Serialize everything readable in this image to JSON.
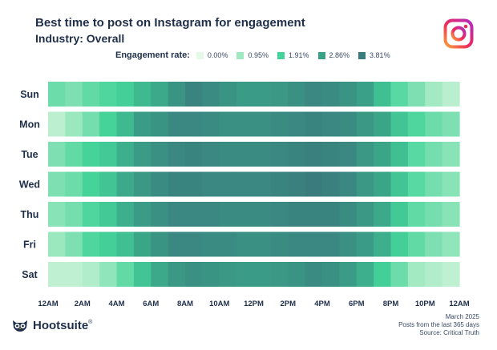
{
  "chart_data": {
    "type": "heatmap",
    "title": "Best time to post on Instagram for engagement",
    "subtitle": "Industry: Overall",
    "legend_title": "Engagement rate:",
    "legend": [
      {
        "label": "0.00%",
        "color": "#e4f9e6"
      },
      {
        "label": "0.95%",
        "color": "#9fe8c0"
      },
      {
        "label": "1.91%",
        "color": "#45d39a"
      },
      {
        "label": "2.86%",
        "color": "#3aa287"
      },
      {
        "label": "3.81%",
        "color": "#3a7b7e"
      }
    ],
    "color_scale_max": 3.81,
    "rows": [
      "Sun",
      "Mon",
      "Tue",
      "Wed",
      "Thu",
      "Fri",
      "Sat"
    ],
    "x_tick_labels": [
      "12AM",
      "2AM",
      "4AM",
      "6AM",
      "8AM",
      "10AM",
      "12PM",
      "2PM",
      "4PM",
      "6PM",
      "8PM",
      "10PM",
      "12AM"
    ],
    "hours": 24,
    "values": [
      [
        1.5,
        1.3,
        1.6,
        1.8,
        2.0,
        2.4,
        2.7,
        3.2,
        3.6,
        3.4,
        3.2,
        3.0,
        3.0,
        3.1,
        3.3,
        3.5,
        3.4,
        3.2,
        2.9,
        2.3,
        1.7,
        1.3,
        0.9,
        0.6
      ],
      [
        0.55,
        1.0,
        1.4,
        1.9,
        2.4,
        3.0,
        3.2,
        3.5,
        3.5,
        3.4,
        3.3,
        3.3,
        3.3,
        3.4,
        3.5,
        3.6,
        3.5,
        3.4,
        3.1,
        2.8,
        2.2,
        1.8,
        1.5,
        1.3
      ],
      [
        1.3,
        1.6,
        1.9,
        2.1,
        2.6,
        3.0,
        3.3,
        3.5,
        3.6,
        3.5,
        3.4,
        3.4,
        3.4,
        3.5,
        3.6,
        3.7,
        3.6,
        3.5,
        3.1,
        2.8,
        2.3,
        1.7,
        1.4,
        1.2
      ],
      [
        1.3,
        1.5,
        1.9,
        2.2,
        2.7,
        3.1,
        3.4,
        3.6,
        3.6,
        3.5,
        3.5,
        3.5,
        3.5,
        3.6,
        3.7,
        3.8,
        3.7,
        3.5,
        3.1,
        2.8,
        2.2,
        1.7,
        1.4,
        1.2
      ],
      [
        1.2,
        1.4,
        1.8,
        2.1,
        2.6,
        3.0,
        3.3,
        3.5,
        3.5,
        3.5,
        3.4,
        3.4,
        3.4,
        3.5,
        3.6,
        3.6,
        3.6,
        3.4,
        3.1,
        2.7,
        2.1,
        1.6,
        1.4,
        1.2
      ],
      [
        1.0,
        1.3,
        1.8,
        2.0,
        2.3,
        2.8,
        3.2,
        3.5,
        3.5,
        3.4,
        3.4,
        3.3,
        3.3,
        3.4,
        3.5,
        3.5,
        3.5,
        3.3,
        3.0,
        2.6,
        2.0,
        1.6,
        1.3,
        1.1
      ],
      [
        0.5,
        0.5,
        0.7,
        1.1,
        1.6,
        2.2,
        2.7,
        3.1,
        3.3,
        3.2,
        3.1,
        3.0,
        3.0,
        3.1,
        3.2,
        3.4,
        3.3,
        3.0,
        2.6,
        2.0,
        1.5,
        0.9,
        0.7,
        0.5
      ]
    ]
  },
  "brand": {
    "logo_text": "Hootsuite",
    "logo_mark": "®",
    "logo_icon": "owl-icon",
    "platform_icon": "instagram-icon"
  },
  "footer": {
    "date": "March 2025",
    "posts": "Posts from the last 365 days",
    "source": "Source: Critical Truth"
  }
}
